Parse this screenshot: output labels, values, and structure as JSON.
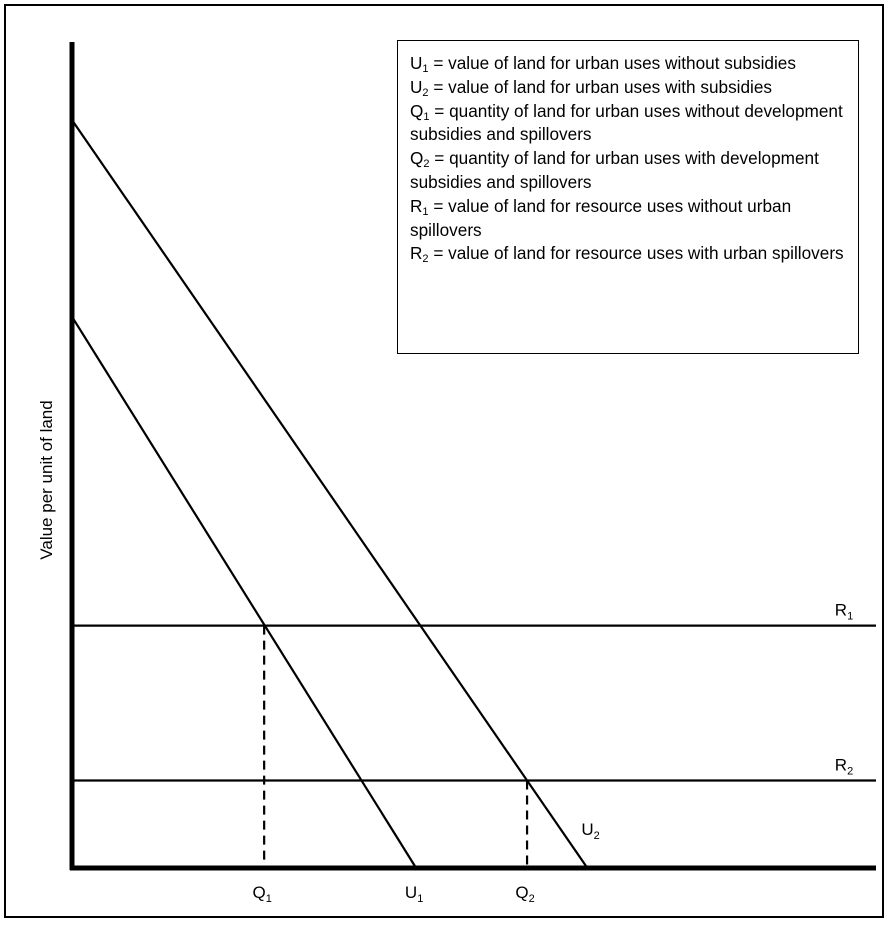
{
  "chart_data": {
    "type": "line",
    "title": "",
    "ylabel": "Value per unit of land",
    "xlabel": "",
    "xlim": [
      0,
      10
    ],
    "ylim": [
      0,
      10
    ],
    "series": [
      {
        "name": "U1",
        "label": "U",
        "sub": "1",
        "x": [
          0,
          4.28
        ],
        "y": [
          7.37,
          0
        ]
      },
      {
        "name": "U2",
        "label": "U",
        "sub": "2",
        "x": [
          0,
          6.41
        ],
        "y": [
          10.0,
          0
        ]
      },
      {
        "name": "R1",
        "label": "R",
        "sub": "1",
        "x": [
          0,
          10
        ],
        "y": [
          3.24,
          3.24
        ]
      },
      {
        "name": "R2",
        "label": "R",
        "sub": "2",
        "x": [
          0,
          10
        ],
        "y": [
          1.17,
          1.17
        ]
      }
    ],
    "markers": [
      {
        "name": "Q1",
        "label": "Q",
        "sub": "1",
        "x": 2.39,
        "y": 3.24
      },
      {
        "name": "Q2",
        "label": "Q",
        "sub": "2",
        "x": 5.66,
        "y": 1.17
      }
    ],
    "x_tick_labels": [
      {
        "label": "Q",
        "sub": "1",
        "x": 2.39
      },
      {
        "label": "U",
        "sub": "1",
        "x": 4.28
      },
      {
        "label": "Q",
        "sub": "2",
        "x": 5.66
      }
    ],
    "grid": false,
    "legend_position": "top-right",
    "legend": [
      {
        "symbol": "U",
        "sub": "1",
        "text": " = value of land for urban uses without subsidies"
      },
      {
        "symbol": "U",
        "sub": "2",
        "text": " = value of land for urban uses with subsidies"
      },
      {
        "symbol": "Q",
        "sub": "1",
        "text": " = quantity of land for urban uses without development subsidies and spillovers"
      },
      {
        "symbol": "Q",
        "sub": "2",
        "text": " = quantity of land for urban uses with development subsidies and spillovers"
      },
      {
        "symbol": "R",
        "sub": "1",
        "text": " = value of land for resource uses without urban spillovers"
      },
      {
        "symbol": "R",
        "sub": "2",
        "text": " = value of land for resource uses with urban spillovers"
      }
    ]
  },
  "colors": {
    "line": "#000000",
    "background": "#ffffff"
  }
}
